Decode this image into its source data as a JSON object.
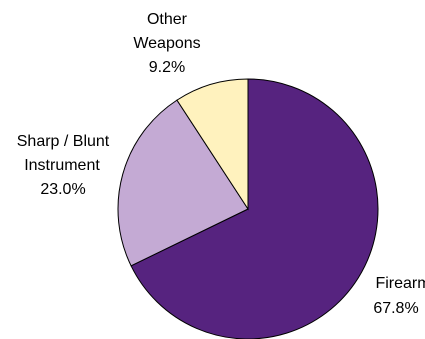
{
  "chart_data": {
    "type": "pie",
    "title": "",
    "start_angle_deg": 0,
    "direction": "clockwise",
    "slices": [
      {
        "label": "Firearm",
        "value": 67.8,
        "value_label": "67.8%",
        "color": "#56237F"
      },
      {
        "label": "Sharp / Blunt Instrument",
        "value": 23.0,
        "value_label": "23.0%",
        "color": "#C4AAD4"
      },
      {
        "label": "Other Weapons",
        "value": 9.2,
        "value_label": "9.2%",
        "color": "#FFF2BE"
      }
    ]
  }
}
